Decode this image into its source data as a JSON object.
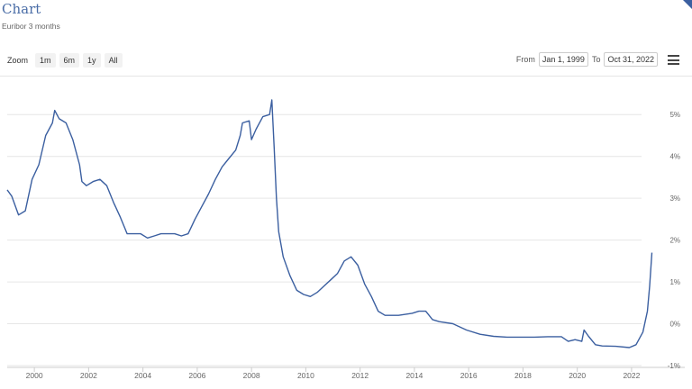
{
  "header": {
    "title": "Chart",
    "subtitle": "Euribor 3 months"
  },
  "toolbar": {
    "zoom_label": "Zoom",
    "zoom_buttons": [
      "1m",
      "6m",
      "1y",
      "All"
    ],
    "from_label": "From",
    "from_value": "Jan 1, 1999",
    "to_label": "To",
    "to_value": "Oct 31, 2022",
    "menu_icon": "hamburger-menu-icon"
  },
  "colors": {
    "title": "#4a6da7",
    "line": "#3b5fa0",
    "grid": "#e6e6e6"
  },
  "chart_data": {
    "type": "line",
    "title": "Chart",
    "subtitle": "Euribor 3 months",
    "xlabel": "",
    "ylabel": "",
    "x_tick_labels": [
      "2000",
      "2002",
      "2004",
      "2006",
      "2008",
      "2010",
      "2012",
      "2014",
      "2016",
      "2018",
      "2020",
      "2022"
    ],
    "y_tick_labels": [
      "5%",
      "4%",
      "3%",
      "2%",
      "1%",
      "0%",
      "-1%"
    ],
    "xlim": [
      "1999-01-01",
      "2022-10-31"
    ],
    "ylim": [
      -1,
      5.5
    ],
    "grid": "horizontal",
    "y_axis_side": "right",
    "series": [
      {
        "x": [
          "1999-01",
          "1999-03",
          "1999-06",
          "1999-09",
          "1999-12",
          "2000-03",
          "2000-06",
          "2000-09",
          "2000-10",
          "2000-12",
          "2001-03",
          "2001-06",
          "2001-09",
          "2001-10",
          "2001-12",
          "2002-03",
          "2002-06",
          "2002-09",
          "2002-12",
          "2003-03",
          "2003-06",
          "2003-09",
          "2003-12",
          "2004-03",
          "2004-06",
          "2004-09",
          "2004-12",
          "2005-03",
          "2005-06",
          "2005-09",
          "2005-12",
          "2006-03",
          "2006-06",
          "2006-09",
          "2006-12",
          "2007-03",
          "2007-06",
          "2007-08",
          "2007-09",
          "2007-12",
          "2008-01",
          "2008-03",
          "2008-06",
          "2008-09",
          "2008-10",
          "2008-11",
          "2008-12",
          "2009-01",
          "2009-03",
          "2009-06",
          "2009-09",
          "2009-12",
          "2010-03",
          "2010-06",
          "2010-09",
          "2010-12",
          "2011-03",
          "2011-06",
          "2011-09",
          "2011-12",
          "2012-03",
          "2012-06",
          "2012-09",
          "2012-12",
          "2013-06",
          "2013-12",
          "2014-03",
          "2014-06",
          "2014-09",
          "2014-12",
          "2015-06",
          "2015-12",
          "2016-06",
          "2016-12",
          "2017-06",
          "2017-12",
          "2018-06",
          "2018-12",
          "2019-06",
          "2019-09",
          "2019-12",
          "2020-03",
          "2020-04",
          "2020-06",
          "2020-09",
          "2020-12",
          "2021-06",
          "2021-12",
          "2022-03",
          "2022-06",
          "2022-08",
          "2022-09",
          "2022-10"
        ],
        "y": [
          3.2,
          3.05,
          2.6,
          2.7,
          3.45,
          3.8,
          4.5,
          4.8,
          5.1,
          4.9,
          4.8,
          4.4,
          3.8,
          3.4,
          3.3,
          3.4,
          3.45,
          3.3,
          2.9,
          2.55,
          2.15,
          2.15,
          2.15,
          2.05,
          2.1,
          2.15,
          2.15,
          2.15,
          2.1,
          2.15,
          2.5,
          2.8,
          3.1,
          3.45,
          3.75,
          3.95,
          4.15,
          4.5,
          4.8,
          4.85,
          4.4,
          4.65,
          4.95,
          5.0,
          5.35,
          4.2,
          3.0,
          2.2,
          1.6,
          1.15,
          0.8,
          0.7,
          0.65,
          0.75,
          0.9,
          1.05,
          1.2,
          1.5,
          1.6,
          1.4,
          0.95,
          0.65,
          0.3,
          0.2,
          0.2,
          0.25,
          0.3,
          0.3,
          0.1,
          0.05,
          0.0,
          -0.15,
          -0.25,
          -0.3,
          -0.32,
          -0.32,
          -0.32,
          -0.31,
          -0.31,
          -0.42,
          -0.38,
          -0.42,
          -0.15,
          -0.3,
          -0.5,
          -0.53,
          -0.54,
          -0.57,
          -0.5,
          -0.2,
          0.3,
          0.9,
          1.7
        ]
      }
    ]
  }
}
